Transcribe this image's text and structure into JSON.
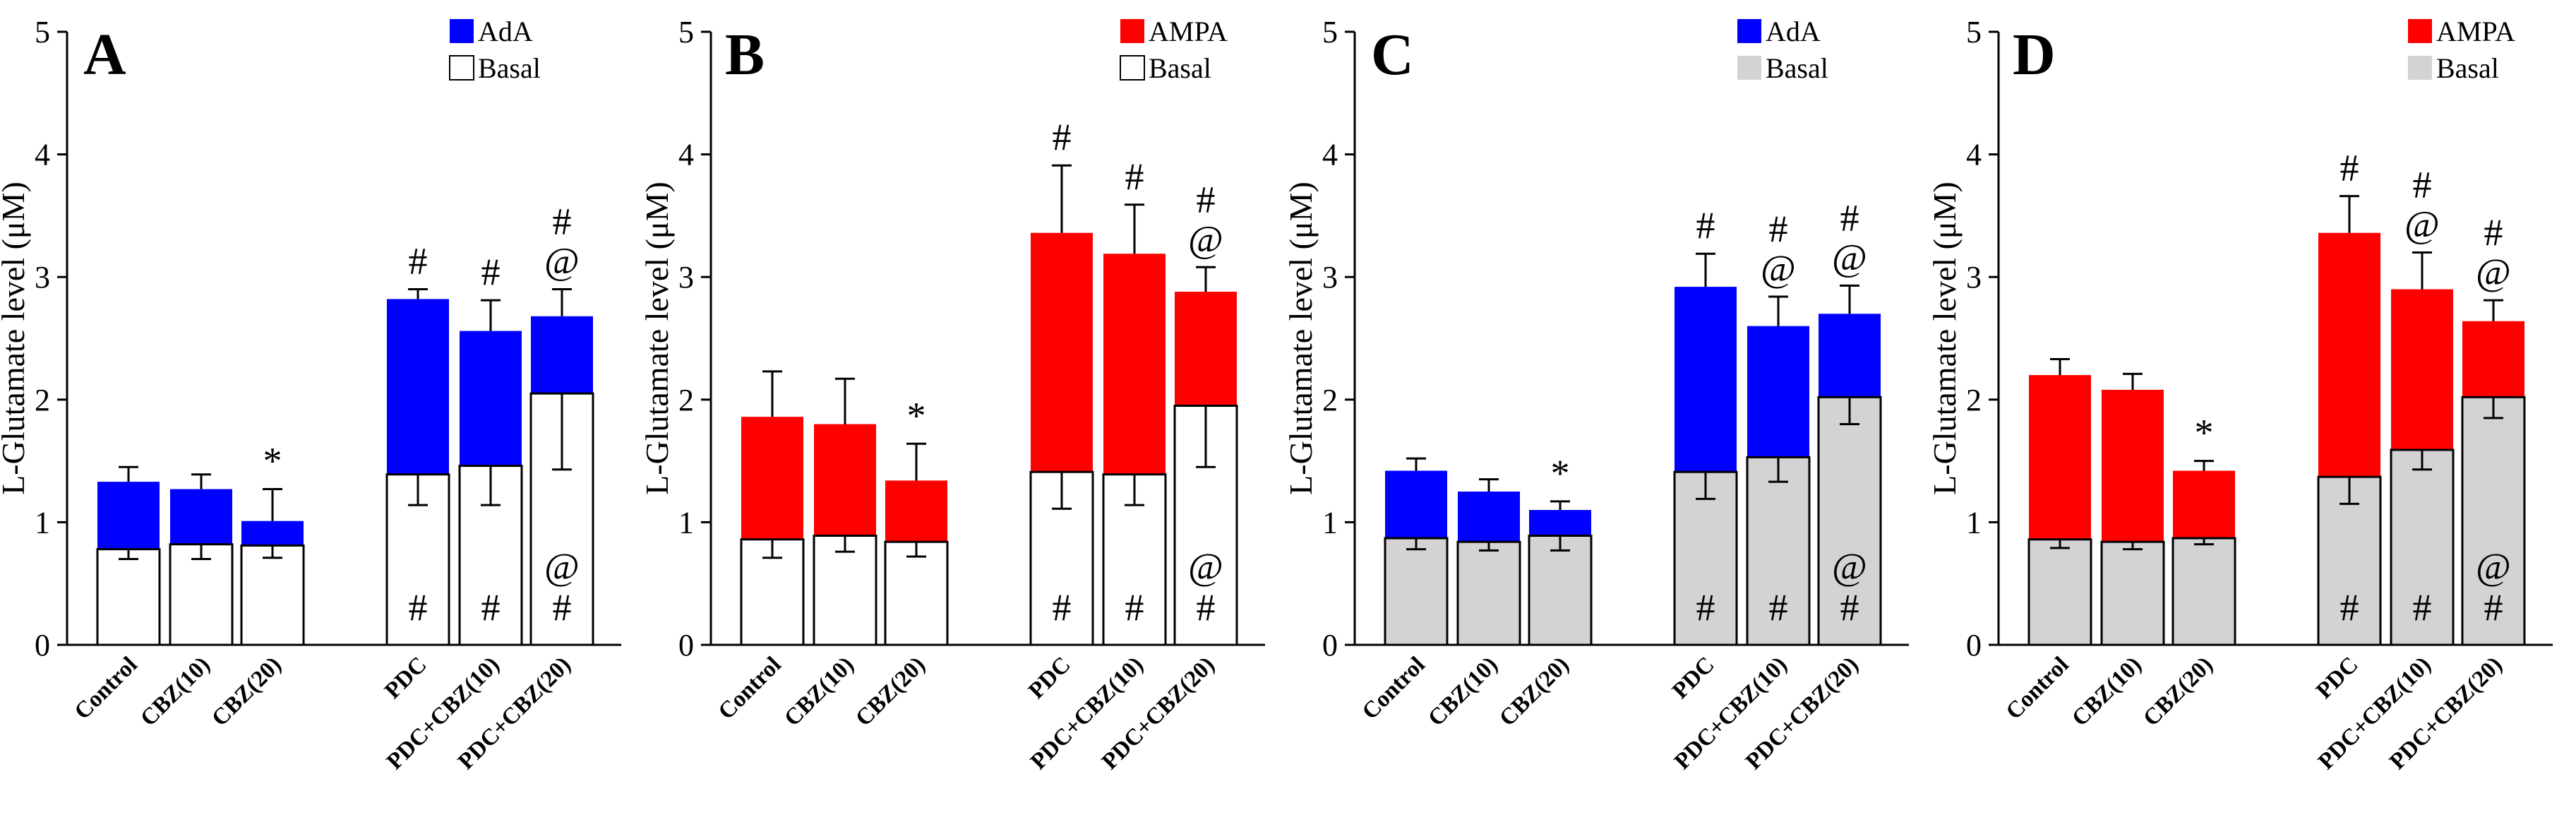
{
  "chart_data": [
    {
      "type": "bar",
      "panel": "A",
      "ylabel": "L-Glutamate level (μM)",
      "ylim": [
        0,
        5
      ],
      "yticks": [
        "0",
        "1",
        "2",
        "3",
        "4",
        "5"
      ],
      "categories": [
        "Control",
        "CBZ(10)",
        "CBZ(20)",
        "PDC",
        "PDC+CBZ(10)",
        "PDC+CBZ(20)"
      ],
      "series": [
        {
          "name": "AdA",
          "color": "#0000ff",
          "values": [
            1.33,
            1.27,
            1.01,
            2.82,
            2.56,
            2.68
          ],
          "errors": [
            0.12,
            0.12,
            0.26,
            0.08,
            0.25,
            0.22
          ],
          "annotations": [
            "",
            "",
            "*",
            "#",
            "#",
            "#\n@"
          ]
        },
        {
          "name": "Basal",
          "color": "#ffffff",
          "values": [
            0.78,
            0.82,
            0.81,
            1.39,
            1.46,
            2.05
          ],
          "errors": [
            0.08,
            0.12,
            0.1,
            0.25,
            0.32,
            0.62
          ],
          "annotations": [
            "",
            "",
            "",
            "#",
            "#",
            "@\n#"
          ]
        }
      ],
      "legend": [
        "AdA",
        "Basal"
      ]
    },
    {
      "type": "bar",
      "panel": "B",
      "ylabel": "L-Glutamate level (μM)",
      "ylim": [
        0,
        5
      ],
      "yticks": [
        "0",
        "1",
        "2",
        "3",
        "4",
        "5"
      ],
      "categories": [
        "Control",
        "CBZ(10)",
        "CBZ(20)",
        "PDC",
        "PDC+CBZ(10)",
        "PDC+CBZ(20)"
      ],
      "series": [
        {
          "name": "AMPA",
          "color": "#ff0000",
          "values": [
            1.86,
            1.8,
            1.34,
            3.36,
            3.19,
            2.88
          ],
          "errors": [
            0.37,
            0.37,
            0.3,
            0.55,
            0.4,
            0.2
          ],
          "annotations": [
            "",
            "",
            "*",
            "#",
            "#",
            "#\n@"
          ]
        },
        {
          "name": "Basal",
          "color": "#ffffff",
          "values": [
            0.86,
            0.89,
            0.84,
            1.41,
            1.39,
            1.95
          ],
          "errors": [
            0.15,
            0.13,
            0.12,
            0.3,
            0.25,
            0.5
          ],
          "annotations": [
            "",
            "",
            "",
            "#",
            "#",
            "@\n#"
          ]
        }
      ],
      "legend": [
        "AMPA",
        "Basal"
      ]
    },
    {
      "type": "bar",
      "panel": "C",
      "ylabel": "L-Glutamate level (μM)",
      "ylim": [
        0,
        5
      ],
      "yticks": [
        "0",
        "1",
        "2",
        "3",
        "4",
        "5"
      ],
      "categories": [
        "Control",
        "CBZ(10)",
        "CBZ(20)",
        "PDC",
        "PDC+CBZ(10)",
        "PDC+CBZ(20)"
      ],
      "series": [
        {
          "name": "AdA",
          "color": "#0000ff",
          "values": [
            1.42,
            1.25,
            1.1,
            2.92,
            2.6,
            2.7
          ],
          "errors": [
            0.1,
            0.1,
            0.07,
            0.27,
            0.24,
            0.23
          ],
          "annotations": [
            "",
            "",
            "*",
            "#",
            "#\n@",
            "#\n@"
          ]
        },
        {
          "name": "Basal",
          "color": "#d3d3d3",
          "values": [
            0.87,
            0.84,
            0.89,
            1.41,
            1.53,
            2.02
          ],
          "errors": [
            0.09,
            0.07,
            0.12,
            0.22,
            0.2,
            0.22
          ],
          "annotations": [
            "",
            "",
            "",
            "#",
            "#",
            "@\n#"
          ]
        }
      ],
      "legend": [
        "AdA",
        "Basal"
      ]
    },
    {
      "type": "bar",
      "panel": "D",
      "ylabel": "L-Glutamate level (μM)",
      "ylim": [
        0,
        5
      ],
      "yticks": [
        "0",
        "1",
        "2",
        "3",
        "4",
        "5"
      ],
      "categories": [
        "Control",
        "CBZ(10)",
        "CBZ(20)",
        "PDC",
        "PDC+CBZ(10)",
        "PDC+CBZ(20)"
      ],
      "series": [
        {
          "name": "AMPA",
          "color": "#ff0000",
          "values": [
            2.2,
            2.08,
            1.42,
            3.36,
            2.9,
            2.64
          ],
          "errors": [
            0.13,
            0.13,
            0.08,
            0.3,
            0.3,
            0.17
          ],
          "annotations": [
            "",
            "",
            "*",
            "#",
            "#\n@",
            "#\n@"
          ]
        },
        {
          "name": "Basal",
          "color": "#d3d3d3",
          "values": [
            0.86,
            0.84,
            0.87,
            1.37,
            1.59,
            2.02
          ],
          "errors": [
            0.07,
            0.06,
            0.05,
            0.22,
            0.16,
            0.17
          ],
          "annotations": [
            "",
            "",
            "",
            "#",
            "#",
            "@\n#"
          ]
        }
      ],
      "legend": [
        "AMPA",
        "Basal"
      ]
    }
  ]
}
